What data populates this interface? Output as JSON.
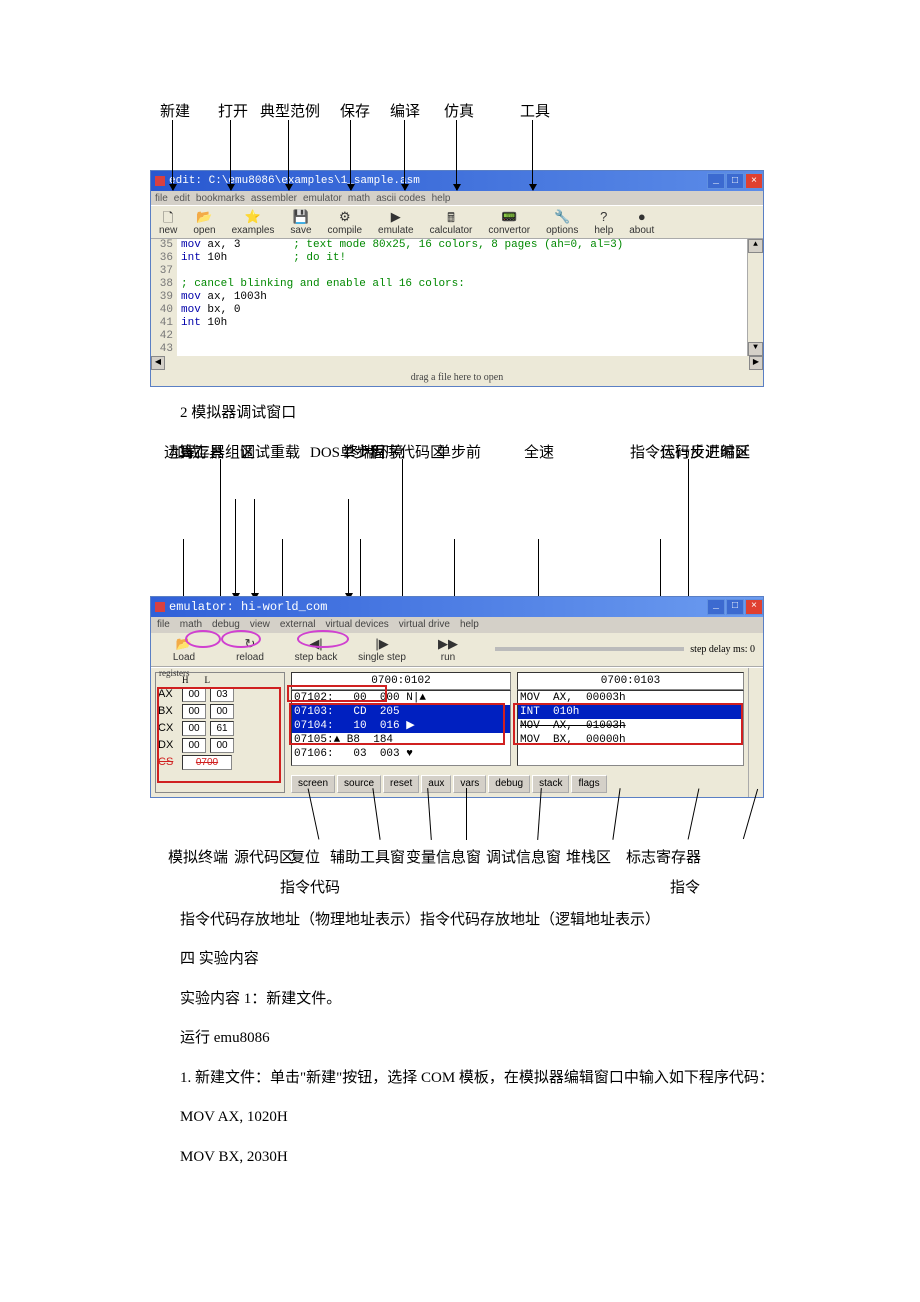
{
  "editor": {
    "labels": [
      "新建",
      "打开",
      "典型范例",
      "保存",
      "编译",
      "仿真",
      "工具"
    ],
    "title": "edit: C:\\emu8086\\examples\\1_sample.asm",
    "menu": [
      "file",
      "edit",
      "bookmarks",
      "assembler",
      "emulator",
      "math",
      "ascii codes",
      "help"
    ],
    "toolbar": [
      {
        "icon": "🗋",
        "label": "new"
      },
      {
        "icon": "📂",
        "label": "open"
      },
      {
        "icon": "⭐",
        "label": "examples"
      },
      {
        "icon": "💾",
        "label": "save"
      },
      {
        "icon": "⚙",
        "label": "compile"
      },
      {
        "icon": "▶",
        "label": "emulate"
      },
      {
        "icon": "🖩",
        "label": "calculator"
      },
      {
        "icon": "📟",
        "label": "convertor"
      },
      {
        "icon": "🔧",
        "label": "options"
      },
      {
        "icon": "?",
        "label": "help"
      },
      {
        "icon": "●",
        "label": "about"
      }
    ],
    "lines": [
      {
        "n": "35",
        "code": "mov ax, 3        ; text mode 80x25, 16 colors, 8 pages (ah=0, al=3)"
      },
      {
        "n": "36",
        "code": "int 10h          ; do it!"
      },
      {
        "n": "37",
        "code": ""
      },
      {
        "n": "38",
        "code": "; cancel blinking and enable all 16 colors:"
      },
      {
        "n": "39",
        "code": "mov ax, 1003h"
      },
      {
        "n": "40",
        "code": "mov bx, 0"
      },
      {
        "n": "41",
        "code": "int 10h"
      },
      {
        "n": "42",
        "code": ""
      },
      {
        "n": "43",
        "code": ""
      }
    ],
    "status": "drag a file here to open"
  },
  "emulator": {
    "top_labels": {
      "reg": "寄存器组区",
      "code": "程序代码区",
      "disasm": "代码反汇编区"
    },
    "row2": {
      "math": "运算工具",
      "debug": "调试",
      "dos": "DOS 终端环境"
    },
    "row3": {
      "load": "加载",
      "reload": "重载",
      "back": "单步后",
      "fwd": "单步前",
      "run": "全速",
      "delay": "指令运行步进时延"
    },
    "title": "emulator: hi-world_com",
    "menu": [
      "file",
      "math",
      "debug",
      "view",
      "external",
      "virtual devices",
      "virtual drive",
      "help"
    ],
    "toolbar": [
      {
        "icon": "📂",
        "label": "Load"
      },
      {
        "icon": "↻",
        "label": "reload"
      },
      {
        "icon": "◀|",
        "label": "step back"
      },
      {
        "icon": "|▶",
        "label": "single step"
      },
      {
        "icon": "▶▶",
        "label": "run"
      }
    ],
    "delay_label": "step delay ms: 0",
    "addr1": "0700:0102",
    "addr2": "0700:0103",
    "registers": [
      {
        "name": "AX",
        "h": "00",
        "l": "03"
      },
      {
        "name": "BX",
        "h": "00",
        "l": "00"
      },
      {
        "name": "CX",
        "h": "00",
        "l": "61"
      },
      {
        "name": "DX",
        "h": "00",
        "l": "00"
      }
    ],
    "cs": "0700",
    "code_rows": [
      "07102:   00  000 N|▲",
      "07103:   CD  205",
      "07104:   10  016 ▶",
      "07105:▲ B8  184",
      "07106:   03  003 ♥"
    ],
    "disasm_rows": [
      "MOV  AX,  00003h",
      "INT  010h",
      "MOV  AX,  01003h",
      "MOV  BX,  00000h"
    ],
    "buttons": [
      "screen",
      "source",
      "reset",
      "aux",
      "vars",
      "debug",
      "stack",
      "flags"
    ],
    "bottom_labels": [
      "模拟终端",
      "源代码区",
      "复位",
      "辅助工具窗",
      "变量信息窗",
      "调试信息窗",
      "堆栈区",
      "标志寄存器"
    ],
    "instr_code": "指令代码",
    "instr": "指令"
  },
  "text": {
    "t1": "2 模拟器调试窗口",
    "t2": "指令代码存放地址（物理地址表示）指令代码存放地址（逻辑地址表示）",
    "t3": "四 实验内容",
    "t4": "实验内容 1：新建文件。",
    "t5": "运行 emu8086",
    "t6": "1. 新建文件：单击\"新建\"按钮，选择 COM 模板，在模拟器编辑窗口中输入如下程序代码：",
    "t7": "MOV AX,  1020H",
    "t8": "MOV BX,  2030H"
  }
}
